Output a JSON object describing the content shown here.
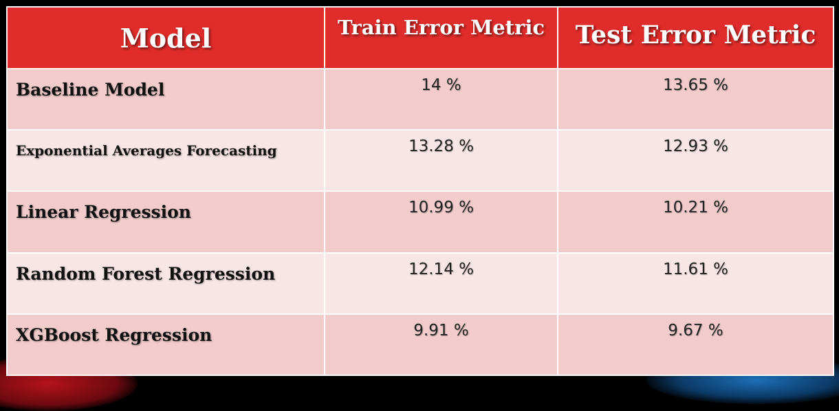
{
  "table": {
    "headers": {
      "model": "Model",
      "train": "Train Error Metric",
      "test": "Test Error Metric"
    },
    "rows": [
      {
        "model": "Baseline Model",
        "train": "14 %",
        "test": "13.65 %"
      },
      {
        "model": "Exponential Averages Forecasting",
        "train": "13.28 %",
        "test": "12.93 %"
      },
      {
        "model": "Linear Regression",
        "train": "10.99 %",
        "test": "10.21 %"
      },
      {
        "model": "Random Forest Regression",
        "train": "12.14 %",
        "test": "11.61 %"
      },
      {
        "model": "XGBoost Regression",
        "train": "9.91 %",
        "test": "9.67 %"
      }
    ]
  },
  "colors": {
    "header_background": "#e02c2a",
    "row_odd": "#f2cccc",
    "row_even": "#f8e6e6",
    "slide_background": "#000000"
  }
}
